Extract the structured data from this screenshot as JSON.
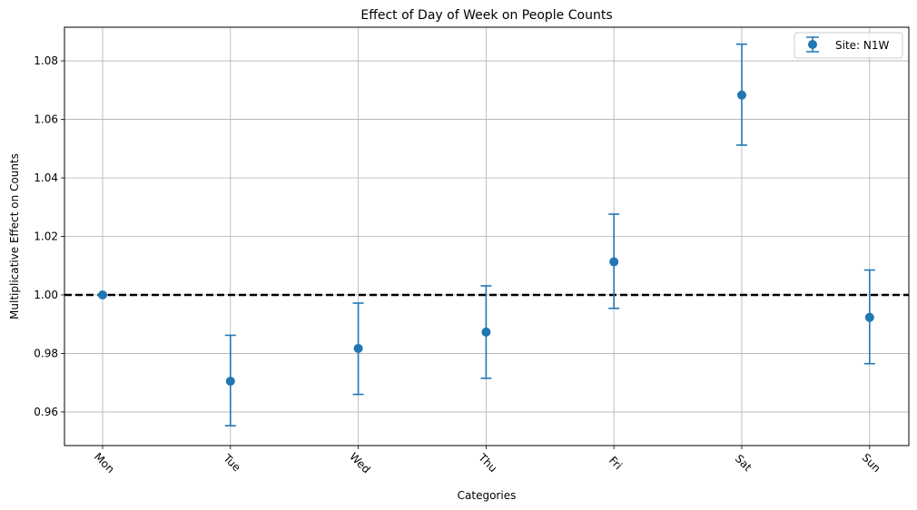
{
  "chart_data": {
    "type": "scatter",
    "title": "Effect of Day of Week on People Counts",
    "xlabel": "Categories",
    "ylabel": "Multiplicative Effect on Counts",
    "categories": [
      "Mon",
      "Tue",
      "Wed",
      "Thu",
      "Fri",
      "Sat",
      "Sun"
    ],
    "series": [
      {
        "name": "Site: N1W",
        "color": "#1f77b4",
        "values": [
          1.0,
          0.9705,
          0.9817,
          0.9873,
          1.0113,
          1.0683,
          0.9923
        ],
        "err_low": [
          1.0,
          0.9553,
          0.966,
          0.9715,
          0.9954,
          1.0512,
          0.9765
        ],
        "err_high": [
          1.0,
          0.9862,
          0.9972,
          1.0031,
          1.0276,
          1.0857,
          1.0085
        ]
      }
    ],
    "reference_line": {
      "y": 1.0,
      "style": "dashed",
      "color": "#000000"
    },
    "ylim": [
      0.9485,
      1.0915
    ],
    "yticks": [
      0.96,
      0.98,
      1.0,
      1.02,
      1.04,
      1.06,
      1.08
    ],
    "ytick_labels": [
      "0.96",
      "0.98",
      "1.00",
      "1.02",
      "1.04",
      "1.06",
      "1.08"
    ],
    "grid": true,
    "legend_position": "top-right"
  }
}
